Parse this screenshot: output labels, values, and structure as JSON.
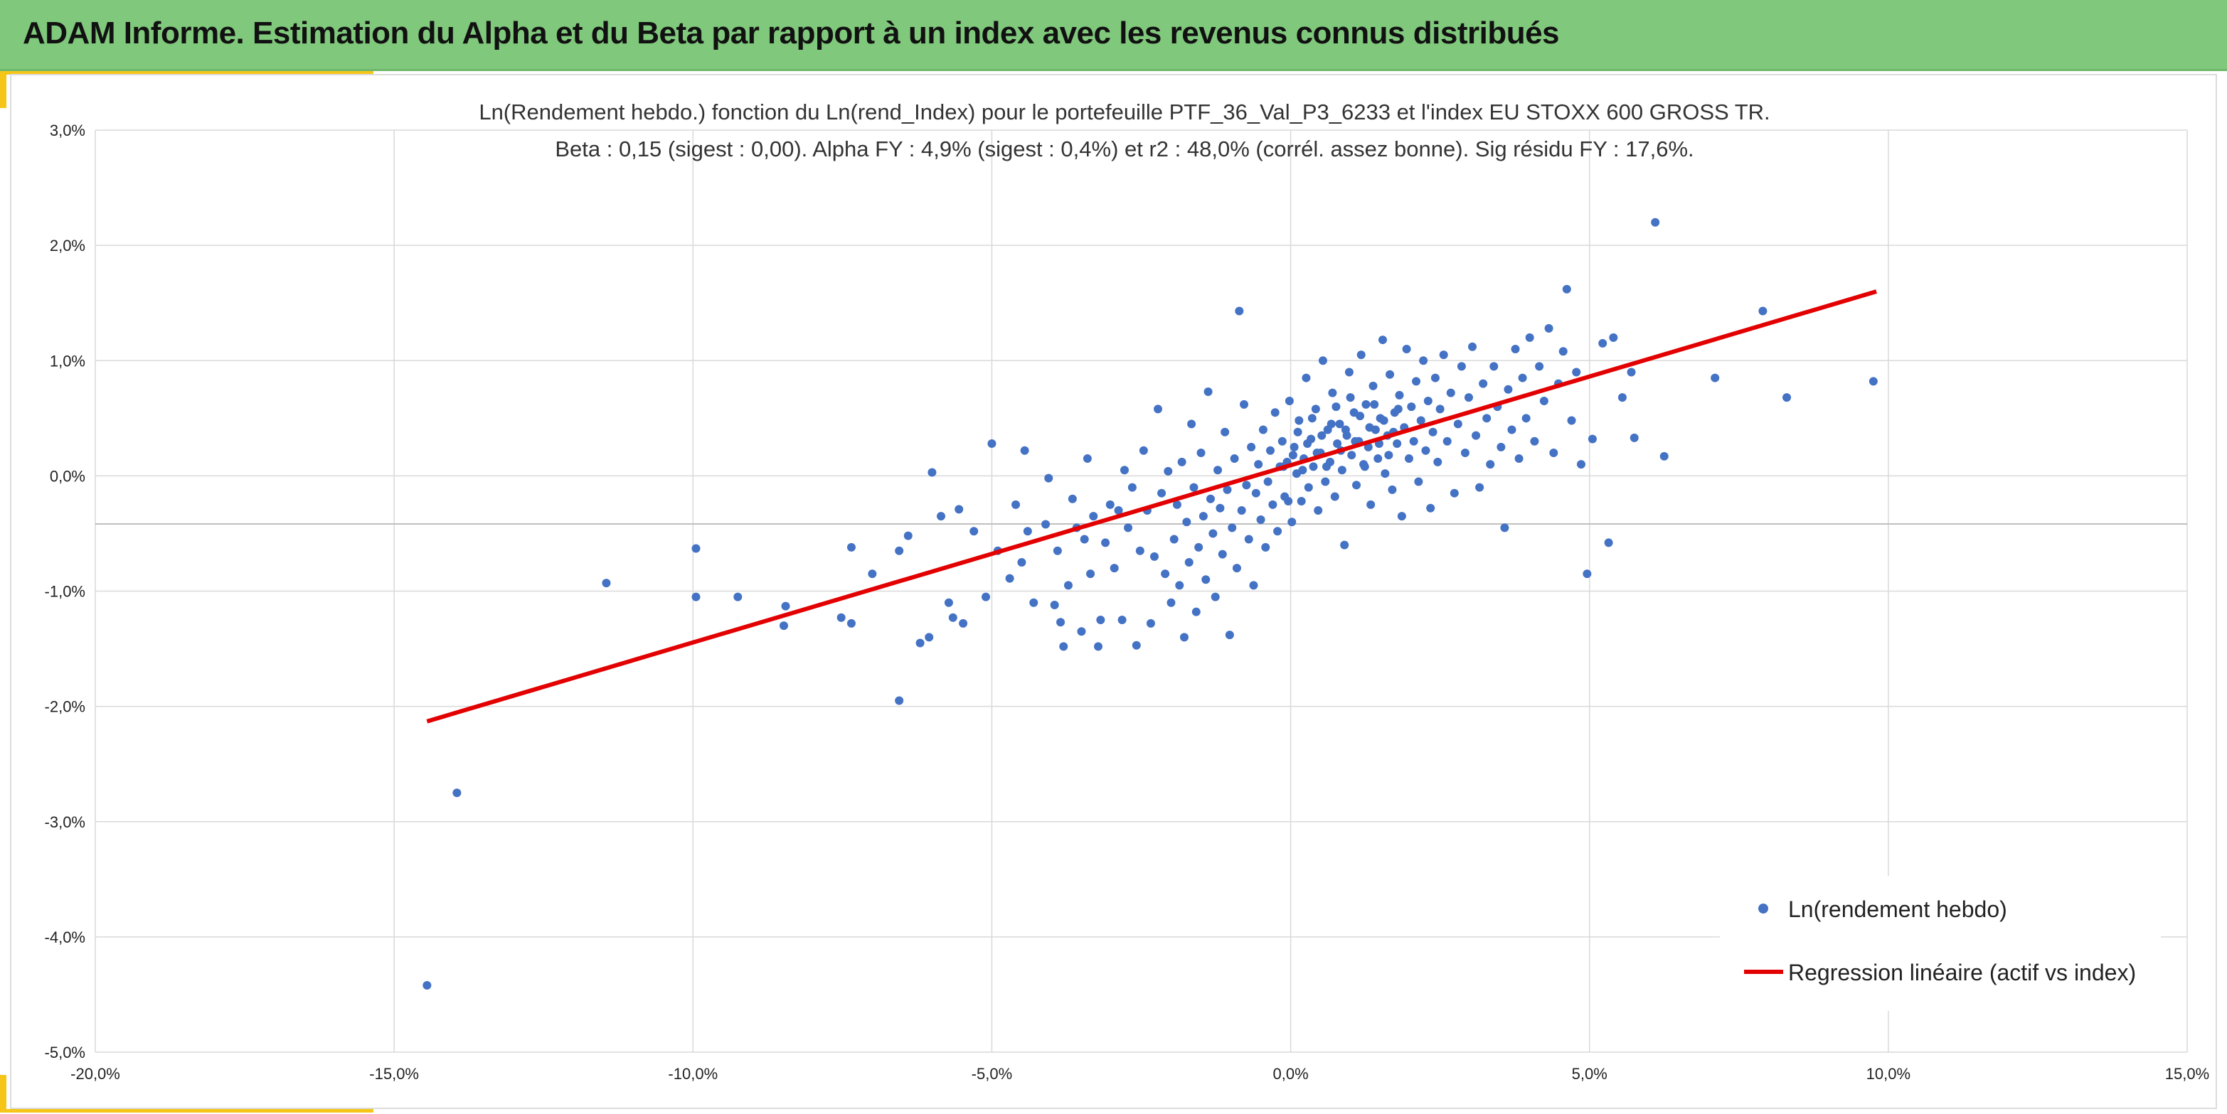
{
  "header": {
    "title": "ADAM Informe. Estimation du Alpha et du Beta par rapport à un index avec les revenus connus distribués"
  },
  "colors": {
    "banner": "#80c87c",
    "accent": "#f5c518",
    "points": "#4472c4",
    "regression": "#e30000",
    "grid": "#d9d9d9"
  },
  "chart_data": {
    "type": "scatter",
    "title": "Ln(Rendement hebdo.) fonction du Ln(rend_Index) pour le portefeuille PTF_36_Val_P3_6233 et l'index EU STOXX 600 GROSS TR.",
    "subtitle": "Beta : 0,15 (sigest : 0,00). Alpha FY : 4,9% (sigest : 0,4%) et r2 : 48,0% (corrél. assez bonne). Sig résidu FY : 17,6%.",
    "xlabel": "",
    "ylabel": "",
    "xlim": [
      -0.2,
      0.15
    ],
    "ylim": [
      -0.05,
      0.03
    ],
    "x_ticks": [
      "-20,0%",
      "-15,0%",
      "-10,0%",
      "-5,0%",
      "0,0%",
      "5,0%",
      "10,0%",
      "15,0%"
    ],
    "y_ticks": [
      "3,0%",
      "2,0%",
      "1,0%",
      "0,0%",
      "-1,0%",
      "-2,0%",
      "-3,0%",
      "-4,0%",
      "-5,0%"
    ],
    "grid": true,
    "legend_position": "bottom-right",
    "series": [
      {
        "name": "Ln(rendement hebdo)",
        "type": "scatter",
        "color": "#4472c4",
        "points": [
          [
            -0.1445,
            -0.0442
          ],
          [
            -0.1395,
            -0.0275
          ],
          [
            -0.1145,
            -0.0093
          ],
          [
            -0.0995,
            -0.0063
          ],
          [
            -0.0995,
            -0.0105
          ],
          [
            -0.0925,
            -0.0105
          ],
          [
            -0.0845,
            -0.0113
          ],
          [
            -0.0848,
            -0.013
          ],
          [
            -0.0752,
            -0.0123
          ],
          [
            -0.0735,
            -0.0128
          ],
          [
            -0.0735,
            -0.0062
          ],
          [
            -0.07,
            -0.0085
          ],
          [
            -0.0655,
            -0.0195
          ],
          [
            -0.0655,
            -0.0065
          ],
          [
            -0.064,
            -0.0052
          ],
          [
            -0.062,
            -0.0145
          ],
          [
            -0.0605,
            -0.014
          ],
          [
            -0.06,
            0.0003
          ],
          [
            -0.0585,
            -0.0035
          ],
          [
            -0.0572,
            -0.011
          ],
          [
            -0.0565,
            -0.0123
          ],
          [
            -0.0555,
            -0.0029
          ],
          [
            -0.0548,
            -0.0128
          ],
          [
            -0.053,
            -0.0048
          ],
          [
            -0.051,
            -0.0105
          ],
          [
            -0.05,
            0.0028
          ],
          [
            -0.049,
            -0.0065
          ],
          [
            -0.047,
            -0.0089
          ],
          [
            -0.046,
            -0.0025
          ],
          [
            -0.045,
            -0.0075
          ],
          [
            -0.0445,
            0.0022
          ],
          [
            -0.044,
            -0.0048
          ],
          [
            -0.043,
            -0.011
          ],
          [
            -0.041,
            -0.0042
          ],
          [
            -0.0405,
            -0.0002
          ],
          [
            -0.0395,
            -0.0112
          ],
          [
            -0.039,
            -0.0065
          ],
          [
            -0.0385,
            -0.0127
          ],
          [
            -0.038,
            -0.0148
          ],
          [
            -0.0372,
            -0.0095
          ],
          [
            -0.0365,
            -0.002
          ],
          [
            -0.0358,
            -0.0045
          ],
          [
            -0.035,
            -0.0135
          ],
          [
            -0.0345,
            -0.0055
          ],
          [
            -0.034,
            0.0015
          ],
          [
            -0.0335,
            -0.0085
          ],
          [
            -0.033,
            -0.0035
          ],
          [
            -0.0322,
            -0.0148
          ],
          [
            -0.0318,
            -0.0125
          ],
          [
            -0.031,
            -0.0058
          ],
          [
            -0.0302,
            -0.0025
          ],
          [
            -0.0295,
            -0.008
          ],
          [
            -0.0288,
            -0.003
          ],
          [
            -0.0282,
            -0.0125
          ],
          [
            -0.0278,
            0.0005
          ],
          [
            -0.0272,
            -0.0045
          ],
          [
            -0.0265,
            -0.001
          ],
          [
            -0.0258,
            -0.0147
          ],
          [
            -0.0252,
            -0.0065
          ],
          [
            -0.0246,
            0.0022
          ],
          [
            -0.024,
            -0.003
          ],
          [
            -0.0234,
            -0.0128
          ],
          [
            -0.0228,
            -0.007
          ],
          [
            -0.0222,
            0.0058
          ],
          [
            -0.0216,
            -0.0015
          ],
          [
            -0.021,
            -0.0085
          ],
          [
            -0.0205,
            0.0004
          ],
          [
            -0.02,
            -0.011
          ],
          [
            -0.0195,
            -0.0055
          ],
          [
            -0.019,
            -0.0025
          ],
          [
            -0.0186,
            -0.0095
          ],
          [
            -0.0182,
            0.0012
          ],
          [
            -0.0178,
            -0.014
          ],
          [
            -0.0174,
            -0.004
          ],
          [
            -0.017,
            -0.0075
          ],
          [
            -0.0166,
            0.0045
          ],
          [
            -0.0162,
            -0.001
          ],
          [
            -0.0158,
            -0.0118
          ],
          [
            -0.0154,
            -0.0062
          ],
          [
            -0.015,
            0.002
          ],
          [
            -0.0146,
            -0.0035
          ],
          [
            -0.0142,
            -0.009
          ],
          [
            -0.0138,
            0.0073
          ],
          [
            -0.0134,
            -0.002
          ],
          [
            -0.013,
            -0.005
          ],
          [
            -0.0126,
            -0.0105
          ],
          [
            -0.0122,
            0.0005
          ],
          [
            -0.0118,
            -0.0028
          ],
          [
            -0.0114,
            -0.0068
          ],
          [
            -0.011,
            0.0038
          ],
          [
            -0.0106,
            -0.0012
          ],
          [
            -0.0102,
            -0.0138
          ],
          [
            -0.0098,
            -0.0045
          ],
          [
            -0.0094,
            0.0015
          ],
          [
            -0.009,
            -0.008
          ],
          [
            -0.0086,
            0.0143
          ],
          [
            -0.0082,
            -0.003
          ],
          [
            -0.0078,
            0.0062
          ],
          [
            -0.0074,
            -0.0008
          ],
          [
            -0.007,
            -0.0055
          ],
          [
            -0.0066,
            0.0025
          ],
          [
            -0.0062,
            -0.0095
          ],
          [
            -0.0058,
            -0.0015
          ],
          [
            -0.0054,
            0.001
          ],
          [
            -0.005,
            -0.0038
          ],
          [
            -0.0046,
            0.004
          ],
          [
            -0.0042,
            -0.0062
          ],
          [
            -0.0038,
            -0.0005
          ],
          [
            -0.0034,
            0.0022
          ],
          [
            -0.003,
            -0.0025
          ],
          [
            -0.0026,
            0.0055
          ],
          [
            -0.0022,
            -0.0048
          ],
          [
            -0.0018,
            0.0008
          ],
          [
            -0.0014,
            0.003
          ],
          [
            -0.001,
            -0.0018
          ],
          [
            -0.0006,
            0.0012
          ],
          [
            -0.0002,
            0.0065
          ],
          [
            0.0002,
            -0.004
          ],
          [
            0.0006,
            0.0025
          ],
          [
            0.001,
            0.0002
          ],
          [
            0.0014,
            0.0048
          ],
          [
            0.0018,
            -0.0022
          ],
          [
            0.0022,
            0.0015
          ],
          [
            0.0026,
            0.0085
          ],
          [
            0.003,
            -0.001
          ],
          [
            0.0034,
            0.0032
          ],
          [
            0.0038,
            0.0008
          ],
          [
            0.0042,
            0.0058
          ],
          [
            0.0046,
            -0.003
          ],
          [
            0.005,
            0.002
          ],
          [
            0.0054,
            0.01
          ],
          [
            0.0058,
            -0.0005
          ],
          [
            0.0062,
            0.004
          ],
          [
            0.0066,
            0.0012
          ],
          [
            0.007,
            0.0072
          ],
          [
            0.0074,
            -0.0018
          ],
          [
            0.0078,
            0.0028
          ],
          [
            0.0082,
            0.0045
          ],
          [
            0.0086,
            0.0005
          ],
          [
            0.009,
            -0.006
          ],
          [
            0.0094,
            0.0035
          ],
          [
            0.0098,
            0.009
          ],
          [
            0.0102,
            0.0018
          ],
          [
            0.0106,
            0.0055
          ],
          [
            0.011,
            -0.0008
          ],
          [
            0.0114,
            0.003
          ],
          [
            0.0118,
            0.0105
          ],
          [
            0.0122,
            0.001
          ],
          [
            0.0126,
            0.0062
          ],
          [
            0.013,
            0.0025
          ],
          [
            0.0134,
            -0.0025
          ],
          [
            0.0138,
            0.0078
          ],
          [
            0.0142,
            0.004
          ],
          [
            0.0146,
            0.0015
          ],
          [
            0.015,
            0.005
          ],
          [
            0.0154,
            0.0118
          ],
          [
            0.0158,
            0.0002
          ],
          [
            0.0162,
            0.0035
          ],
          [
            0.0166,
            0.0088
          ],
          [
            0.017,
            -0.0012
          ],
          [
            0.0174,
            0.0055
          ],
          [
            0.0178,
            0.0028
          ],
          [
            0.0182,
            0.007
          ],
          [
            0.0186,
            -0.0035
          ],
          [
            0.019,
            0.0042
          ],
          [
            0.0194,
            0.011
          ],
          [
            0.0198,
            0.0015
          ],
          [
            0.0202,
            0.006
          ],
          [
            0.0206,
            0.003
          ],
          [
            0.021,
            0.0082
          ],
          [
            0.0214,
            -0.0005
          ],
          [
            0.0218,
            0.0048
          ],
          [
            0.0222,
            0.01
          ],
          [
            0.0226,
            0.0022
          ],
          [
            0.023,
            0.0065
          ],
          [
            0.0234,
            -0.0028
          ],
          [
            0.0238,
            0.0038
          ],
          [
            0.0242,
            0.0085
          ],
          [
            0.0246,
            0.0012
          ],
          [
            0.025,
            0.0058
          ],
          [
            0.0256,
            0.0105
          ],
          [
            0.0262,
            0.003
          ],
          [
            0.0268,
            0.0072
          ],
          [
            0.0274,
            -0.0015
          ],
          [
            0.028,
            0.0045
          ],
          [
            0.0286,
            0.0095
          ],
          [
            0.0292,
            0.002
          ],
          [
            0.0298,
            0.0068
          ],
          [
            0.0304,
            0.0112
          ],
          [
            0.031,
            0.0035
          ],
          [
            0.0316,
            -0.001
          ],
          [
            0.0322,
            0.008
          ],
          [
            0.0328,
            0.005
          ],
          [
            0.0334,
            0.001
          ],
          [
            0.034,
            0.0095
          ],
          [
            0.0346,
            0.006
          ],
          [
            0.0352,
            0.0025
          ],
          [
            0.0358,
            -0.0045
          ],
          [
            0.0364,
            0.0075
          ],
          [
            0.037,
            0.004
          ],
          [
            0.0376,
            0.011
          ],
          [
            0.0382,
            0.0015
          ],
          [
            0.0388,
            0.0085
          ],
          [
            0.0394,
            0.005
          ],
          [
            0.04,
            0.012
          ],
          [
            0.0408,
            0.003
          ],
          [
            0.0416,
            0.0095
          ],
          [
            0.0424,
            0.0065
          ],
          [
            0.0432,
            0.0128
          ],
          [
            0.044,
            0.002
          ],
          [
            0.0448,
            0.008
          ],
          [
            0.0456,
            0.0108
          ],
          [
            0.0462,
            0.0162
          ],
          [
            0.047,
            0.0048
          ],
          [
            0.0478,
            0.009
          ],
          [
            0.0486,
            0.001
          ],
          [
            0.0496,
            -0.0085
          ],
          [
            0.0505,
            0.0032
          ],
          [
            0.0522,
            0.0115
          ],
          [
            0.0532,
            -0.0058
          ],
          [
            0.054,
            0.012
          ],
          [
            0.0555,
            0.0068
          ],
          [
            0.057,
            0.009
          ],
          [
            0.0575,
            0.0033
          ],
          [
            0.061,
            0.022
          ],
          [
            0.0625,
            0.0017
          ],
          [
            0.071,
            0.0085
          ],
          [
            0.079,
            0.0143
          ],
          [
            0.083,
            0.0068
          ],
          [
            0.0975,
            0.0082
          ],
          [
            -0.0012,
            0.0008
          ],
          [
            -0.0004,
            -0.0022
          ],
          [
            0.0004,
            0.0018
          ],
          [
            0.0012,
            0.0038
          ],
          [
            0.002,
            0.0005
          ],
          [
            0.0028,
            0.0028
          ],
          [
            0.0036,
            0.005
          ],
          [
            0.0044,
            0.002
          ],
          [
            0.0052,
            0.0035
          ],
          [
            0.006,
            0.0008
          ],
          [
            0.0068,
            0.0045
          ],
          [
            0.0076,
            0.006
          ],
          [
            0.0084,
            0.0022
          ],
          [
            0.0092,
            0.004
          ],
          [
            0.01,
            0.0068
          ],
          [
            0.0108,
            0.003
          ],
          [
            0.0116,
            0.0052
          ],
          [
            0.0124,
            0.0008
          ],
          [
            0.0132,
            0.0042
          ],
          [
            0.014,
            0.0062
          ],
          [
            0.0148,
            0.0028
          ],
          [
            0.0156,
            0.0048
          ],
          [
            0.0164,
            0.0018
          ],
          [
            0.0172,
            0.0038
          ],
          [
            0.018,
            0.0058
          ]
        ]
      },
      {
        "name": "Regression linéaire (actif vs index)",
        "type": "line",
        "color": "#e30000",
        "x": [
          -0.1445,
          0.098
        ],
        "y": [
          -0.0213,
          0.016
        ]
      }
    ]
  }
}
